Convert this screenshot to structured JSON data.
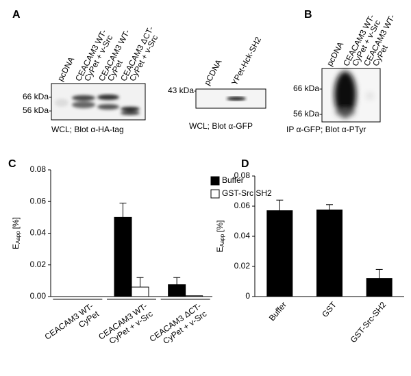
{
  "panel_a": {
    "label": "A",
    "blot1": {
      "lanes": [
        [
          "pcDNA"
        ],
        [
          "CEACAM3 WT-",
          "CyPet + v-Src"
        ],
        [
          "CEACAM3 WT-",
          "CyPet"
        ],
        [
          "CEACAM3 ΔCT-",
          "CyPet + v-Src"
        ]
      ],
      "markers": [
        "66 kDa-",
        "56 kDa-"
      ],
      "caption": "WCL; Blot α-HA-tag"
    },
    "blot2": {
      "lanes": [
        [
          "pCDNA"
        ],
        [
          "YPet-Hck-SH2"
        ]
      ],
      "markers": [
        "43 kDa-"
      ],
      "caption": "WCL; Blot α-GFP"
    }
  },
  "panel_b": {
    "label": "B",
    "blot": {
      "lanes": [
        [
          "pcDNA"
        ],
        [
          "CEACAM3 WT-",
          "CyPet + v-Src"
        ],
        [
          "CEACAM3 WT-",
          "CyPet"
        ]
      ],
      "markers": [
        "66 kDa-",
        "56 kDa-"
      ],
      "caption": "IP α-GFP; Blot α-PTyr"
    }
  },
  "chart_data": [
    {
      "type": "bar",
      "panel_label": "C",
      "ylabel": [
        "E",
        "Aapp",
        "[%]"
      ],
      "categories": [
        [
          "CEACAM3 WT-",
          "CyPet"
        ],
        [
          "CEACAM3 WT-",
          "CyPet + v-Src"
        ],
        [
          "CEACAM3 ΔCT-",
          "CyPet + v-Src"
        ]
      ],
      "series": [
        {
          "name": "Buffer",
          "color": "#000000",
          "values": [
            0,
            0.05,
            0.0075
          ],
          "errors": [
            null,
            0.009,
            0.0045
          ]
        },
        {
          "name": "GST-Src SH2",
          "color": "#ffffff",
          "values": [
            0,
            0.006,
            0.0005
          ],
          "errors": [
            null,
            0.006,
            null
          ]
        }
      ],
      "ylim": [
        0,
        0.08
      ],
      "yticks": [
        {
          "value": 0,
          "label": "0.00"
        },
        0.02,
        0.04,
        0.06,
        0.08
      ],
      "legend": "upper right"
    },
    {
      "type": "bar",
      "panel_label": "D",
      "ylabel": [
        "E",
        "Aapp",
        "[%]"
      ],
      "categories": [
        [
          "Buffer"
        ],
        [
          "GST"
        ],
        [
          "GST-Src-SH2"
        ]
      ],
      "series": [
        {
          "color": "#000000",
          "values": [
            0.057,
            0.0575,
            0.012
          ],
          "errors": [
            0.007,
            0.0035,
            0.006
          ]
        }
      ],
      "ylim": [
        0,
        0.08
      ],
      "yticks": [
        0,
        0.02,
        0.04,
        0.06,
        0.08
      ]
    }
  ]
}
